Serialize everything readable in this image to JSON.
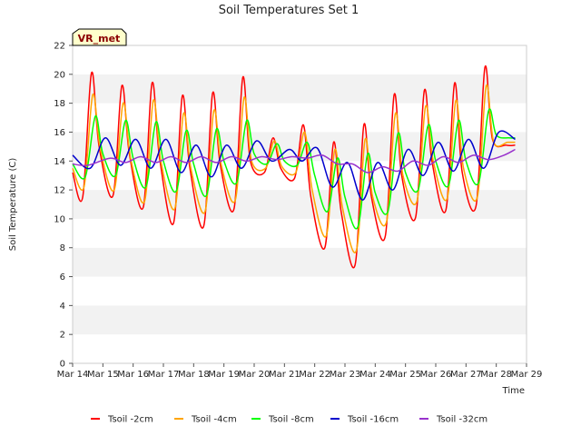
{
  "chart_data": {
    "type": "line",
    "title": "Soil Temperatures Set 1",
    "xlabel": "Time",
    "ylabel": "Soil Temperature (C)",
    "ylim": [
      0,
      22
    ],
    "yticks": [
      0,
      2,
      4,
      6,
      8,
      10,
      12,
      14,
      16,
      18,
      20,
      22
    ],
    "xlim": [
      "Mar 14",
      "Mar 29"
    ],
    "xticks": [
      "Mar 14",
      "Mar 15",
      "Mar 16",
      "Mar 17",
      "Mar 18",
      "Mar 19",
      "Mar 20",
      "Mar 21",
      "Mar 22",
      "Mar 23",
      "Mar 24",
      "Mar 25",
      "Mar 26",
      "Mar 27",
      "Mar 28",
      "Mar 29"
    ],
    "grid": "horizontal bands",
    "legend_position": "bottom",
    "badge": "VR_met",
    "series": [
      {
        "name": "Tsoil -2cm",
        "color": "#ff0000",
        "x": [
          "Mar 14 00:00",
          "Mar 14 08:00",
          "Mar 14 15:00",
          "Mar 14 21:00",
          "Mar 15 08:00",
          "Mar 15 15:00",
          "Mar 15 21:00",
          "Mar 16 08:00",
          "Mar 16 15:00",
          "Mar 16 21:00",
          "Mar 17 08:00",
          "Mar 17 15:00",
          "Mar 17 21:00",
          "Mar 18 08:00",
          "Mar 18 15:00",
          "Mar 18 21:00",
          "Mar 19 08:00",
          "Mar 19 15:00",
          "Mar 19 21:00",
          "Mar 20 08:00",
          "Mar 20 15:00",
          "Mar 20 21:00",
          "Mar 21 08:00",
          "Mar 21 15:00",
          "Mar 21 21:00",
          "Mar 22 08:00",
          "Mar 22 15:00",
          "Mar 22 21:00",
          "Mar 23 08:00",
          "Mar 23 15:00",
          "Mar 23 21:00",
          "Mar 24 08:00",
          "Mar 24 15:00",
          "Mar 24 21:00",
          "Mar 25 08:00",
          "Mar 25 15:00",
          "Mar 25 21:00",
          "Mar 26 08:00",
          "Mar 26 15:00",
          "Mar 26 21:00",
          "Mar 27 08:00",
          "Mar 27 15:00",
          "Mar 27 21:00",
          "Mar 28 08:00",
          "Mar 28 15:00"
        ],
        "y": [
          13.2,
          11.5,
          20.1,
          15.0,
          11.6,
          19.2,
          14.5,
          10.8,
          19.4,
          14.2,
          9.7,
          18.5,
          13.5,
          9.5,
          18.7,
          13.8,
          10.7,
          19.8,
          14.0,
          13.2,
          15.6,
          13.5,
          12.8,
          16.5,
          11.5,
          8.0,
          15.3,
          10.5,
          6.8,
          16.5,
          11.5,
          8.8,
          18.6,
          13.0,
          10.1,
          18.9,
          14.0,
          10.6,
          19.4,
          13.2,
          10.9,
          20.5,
          15.5,
          15.1,
          15.1
        ]
      },
      {
        "name": "Tsoil -4cm",
        "color": "#ffa500",
        "x": [
          "Mar 14 00:00",
          "Mar 14 09:00",
          "Mar 14 16:00",
          "Mar 14 22:00",
          "Mar 15 09:00",
          "Mar 15 16:00",
          "Mar 15 22:00",
          "Mar 16 09:00",
          "Mar 16 16:00",
          "Mar 16 22:00",
          "Mar 17 09:00",
          "Mar 17 16:00",
          "Mar 17 22:00",
          "Mar 18 09:00",
          "Mar 18 16:00",
          "Mar 18 22:00",
          "Mar 19 09:00",
          "Mar 19 16:00",
          "Mar 19 22:00",
          "Mar 20 09:00",
          "Mar 20 16:00",
          "Mar 20 22:00",
          "Mar 21 09:00",
          "Mar 21 16:00",
          "Mar 21 22:00",
          "Mar 22 09:00",
          "Mar 22 16:00",
          "Mar 22 22:00",
          "Mar 23 09:00",
          "Mar 23 16:00",
          "Mar 23 22:00",
          "Mar 24 09:00",
          "Mar 24 16:00",
          "Mar 24 22:00",
          "Mar 25 09:00",
          "Mar 25 16:00",
          "Mar 25 22:00",
          "Mar 26 09:00",
          "Mar 26 16:00",
          "Mar 26 22:00",
          "Mar 27 09:00",
          "Mar 27 16:00",
          "Mar 27 22:00",
          "Mar 28 09:00",
          "Mar 28 15:00"
        ],
        "y": [
          13.5,
          12.2,
          18.6,
          14.8,
          12.0,
          18.0,
          14.2,
          11.2,
          18.2,
          14.0,
          10.7,
          17.3,
          13.4,
          10.5,
          17.5,
          13.7,
          11.3,
          18.4,
          14.0,
          13.5,
          15.4,
          13.6,
          13.2,
          16.0,
          12.0,
          8.8,
          14.8,
          10.8,
          7.8,
          15.5,
          11.5,
          9.8,
          17.3,
          13.0,
          11.2,
          17.8,
          14.0,
          11.4,
          18.2,
          13.5,
          11.5,
          19.2,
          15.3,
          15.3,
          15.3
        ]
      },
      {
        "name": "Tsoil -8cm",
        "color": "#00ff00",
        "x": [
          "Mar 14 00:00",
          "Mar 14 10:00",
          "Mar 14 18:00",
          "Mar 15 00:00",
          "Mar 15 10:00",
          "Mar 15 18:00",
          "Mar 16 00:00",
          "Mar 16 10:00",
          "Mar 16 18:00",
          "Mar 17 00:00",
          "Mar 17 10:00",
          "Mar 17 18:00",
          "Mar 18 00:00",
          "Mar 18 10:00",
          "Mar 18 18:00",
          "Mar 19 00:00",
          "Mar 19 10:00",
          "Mar 19 18:00",
          "Mar 20 00:00",
          "Mar 20 10:00",
          "Mar 20 18:00",
          "Mar 21 00:00",
          "Mar 21 10:00",
          "Mar 21 18:00",
          "Mar 22 00:00",
          "Mar 22 10:00",
          "Mar 22 18:00",
          "Mar 23 00:00",
          "Mar 23 10:00",
          "Mar 23 18:00",
          "Mar 24 00:00",
          "Mar 24 10:00",
          "Mar 24 18:00",
          "Mar 25 00:00",
          "Mar 25 10:00",
          "Mar 25 18:00",
          "Mar 26 00:00",
          "Mar 26 10:00",
          "Mar 26 18:00",
          "Mar 27 00:00",
          "Mar 27 10:00",
          "Mar 27 18:00",
          "Mar 28 00:00",
          "Mar 28 10:00",
          "Mar 28 15:00"
        ],
        "y": [
          13.8,
          12.9,
          17.1,
          14.5,
          13.0,
          16.8,
          14.2,
          12.2,
          16.7,
          14.0,
          11.9,
          16.1,
          13.8,
          11.6,
          16.2,
          14.0,
          12.5,
          16.8,
          14.5,
          13.8,
          15.2,
          14.0,
          13.7,
          15.3,
          13.0,
          10.5,
          14.2,
          11.5,
          9.4,
          14.5,
          11.8,
          10.5,
          15.9,
          13.2,
          12.0,
          16.5,
          14.0,
          12.3,
          16.8,
          14.0,
          12.5,
          17.5,
          15.8,
          15.6,
          15.6
        ]
      },
      {
        "name": "Tsoil -16cm",
        "color": "#0000cd",
        "x": [
          "Mar 14 00:00",
          "Mar 14 14:00",
          "Mar 15 02:00",
          "Mar 15 14:00",
          "Mar 16 02:00",
          "Mar 16 14:00",
          "Mar 17 02:00",
          "Mar 17 14:00",
          "Mar 18 02:00",
          "Mar 18 14:00",
          "Mar 19 02:00",
          "Mar 19 14:00",
          "Mar 20 02:00",
          "Mar 20 14:00",
          "Mar 21 04:00",
          "Mar 21 14:00",
          "Mar 22 02:00",
          "Mar 22 14:00",
          "Mar 23 02:00",
          "Mar 23 14:00",
          "Mar 24 02:00",
          "Mar 24 14:00",
          "Mar 25 02:00",
          "Mar 25 14:00",
          "Mar 26 02:00",
          "Mar 26 14:00",
          "Mar 27 02:00",
          "Mar 27 14:00",
          "Mar 28 02:00",
          "Mar 28 15:00"
        ],
        "y": [
          14.4,
          13.5,
          15.6,
          13.7,
          15.5,
          13.5,
          15.5,
          13.2,
          15.1,
          12.9,
          15.1,
          13.5,
          15.4,
          14.0,
          14.8,
          14.0,
          14.9,
          12.2,
          13.9,
          11.3,
          13.9,
          12.0,
          14.8,
          13.0,
          15.3,
          13.3,
          15.5,
          13.5,
          16.0,
          15.5
        ]
      },
      {
        "name": "Tsoil -32cm",
        "color": "#9932cc",
        "x": [
          "Mar 14 00:00",
          "Mar 14 12:00",
          "Mar 15 06:00",
          "Mar 15 18:00",
          "Mar 16 06:00",
          "Mar 16 18:00",
          "Mar 17 06:00",
          "Mar 17 18:00",
          "Mar 18 06:00",
          "Mar 18 18:00",
          "Mar 19 06:00",
          "Mar 19 18:00",
          "Mar 20 06:00",
          "Mar 20 18:00",
          "Mar 21 06:00",
          "Mar 21 18:00",
          "Mar 22 06:00",
          "Mar 22 18:00",
          "Mar 23 06:00",
          "Mar 23 18:00",
          "Mar 24 06:00",
          "Mar 24 18:00",
          "Mar 25 06:00",
          "Mar 25 18:00",
          "Mar 26 06:00",
          "Mar 26 18:00",
          "Mar 27 06:00",
          "Mar 27 18:00",
          "Mar 28 06:00",
          "Mar 28 15:00"
        ],
        "y": [
          13.8,
          13.7,
          14.2,
          13.9,
          14.3,
          13.9,
          14.3,
          13.9,
          14.3,
          13.9,
          14.3,
          14.0,
          14.3,
          14.1,
          14.3,
          14.2,
          14.4,
          13.8,
          13.8,
          13.2,
          13.6,
          13.3,
          14.0,
          13.7,
          14.3,
          13.9,
          14.4,
          14.1,
          14.4,
          14.8
        ]
      }
    ]
  }
}
